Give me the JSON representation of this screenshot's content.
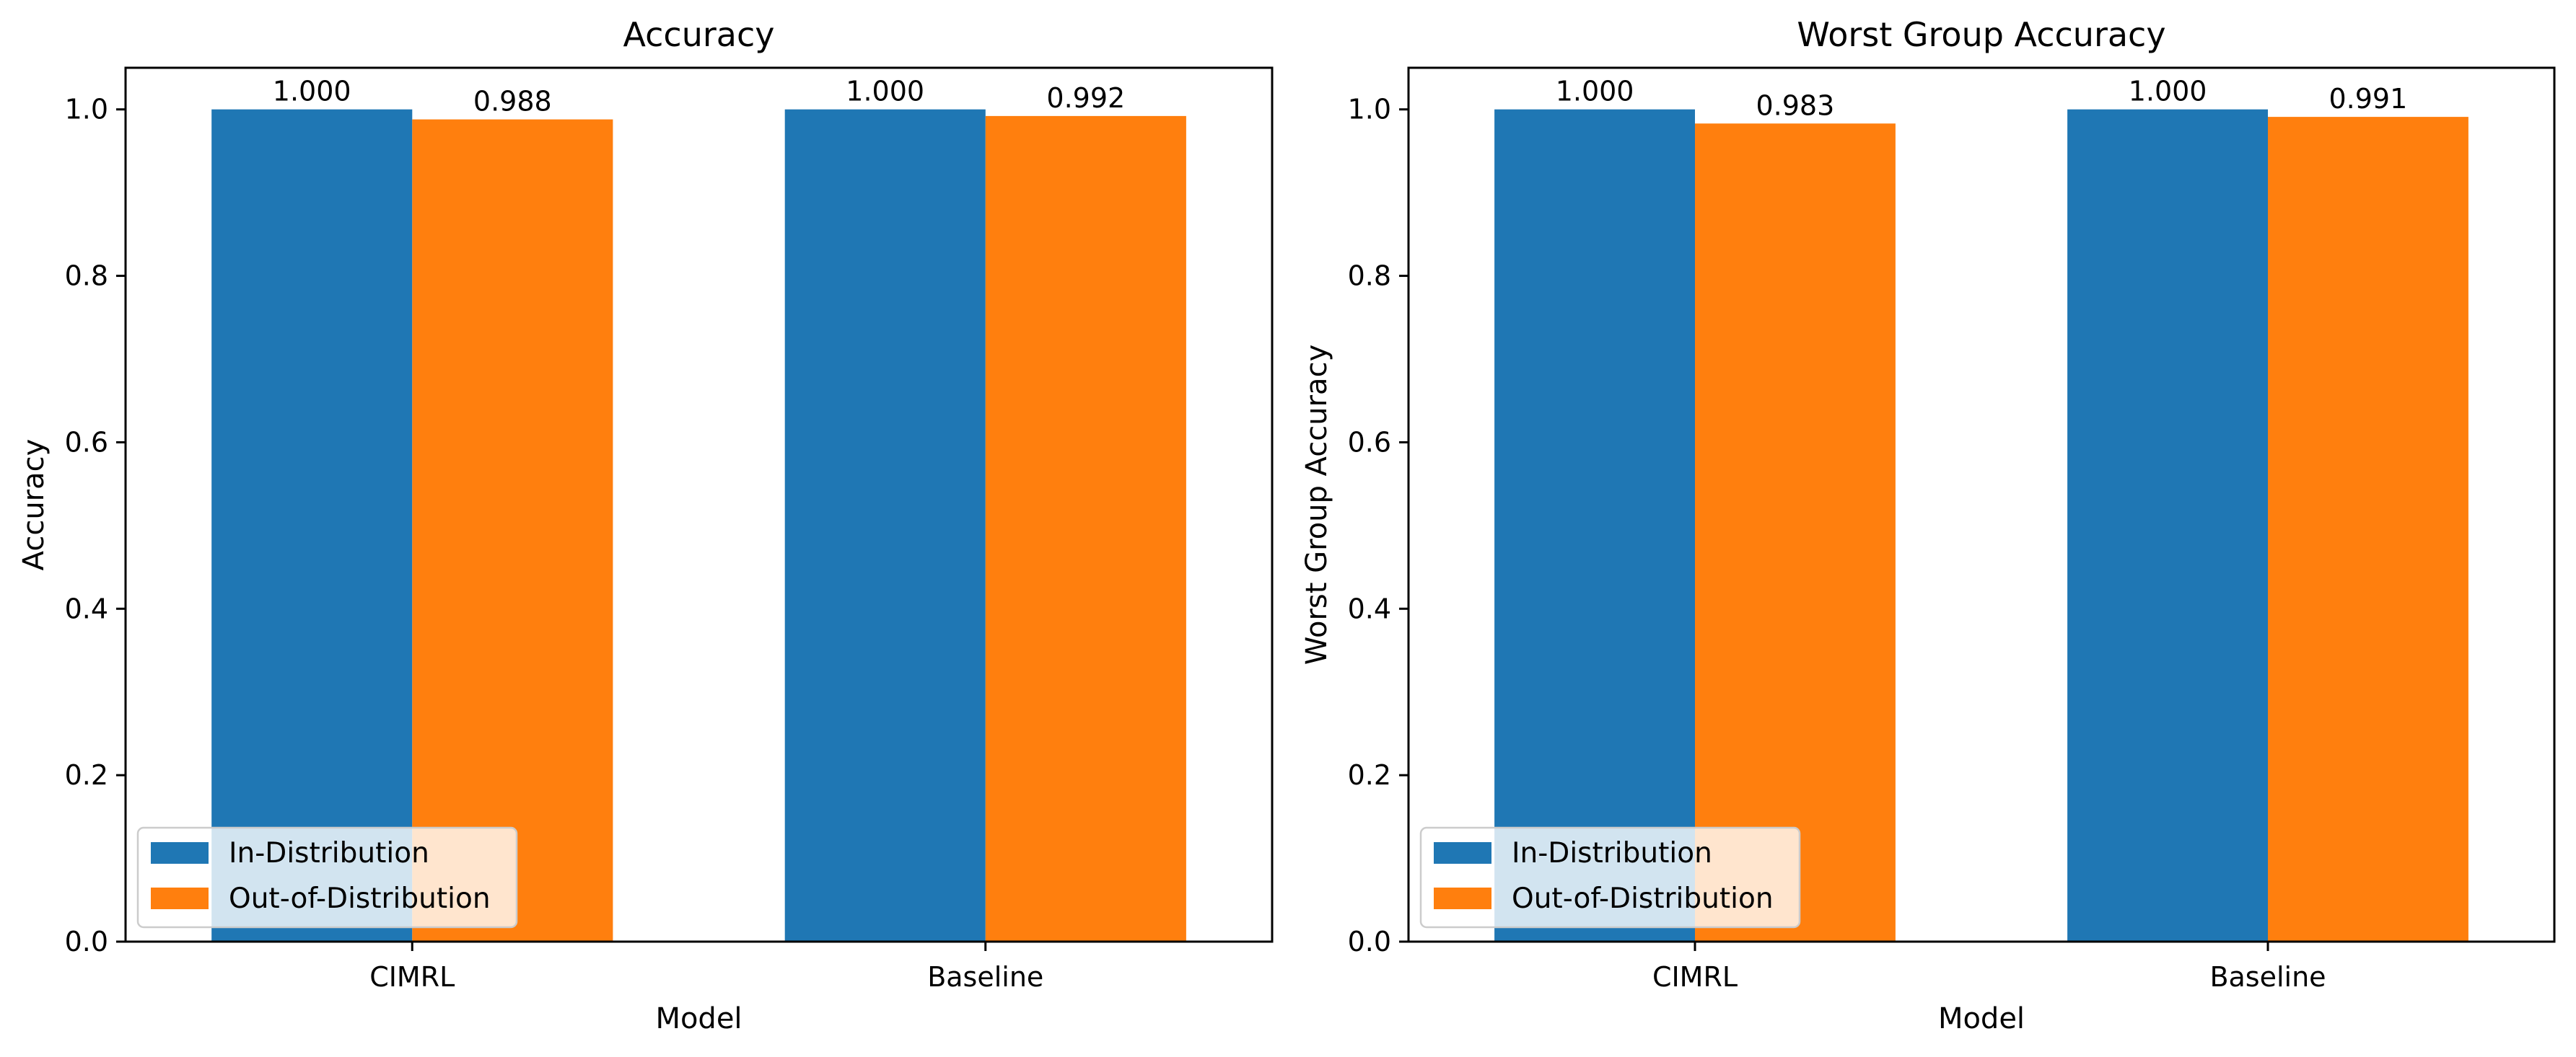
{
  "chart_data": [
    {
      "type": "bar",
      "title": "Accuracy",
      "xlabel": "Model",
      "ylabel": "Accuracy",
      "categories": [
        "CIMRL",
        "Baseline"
      ],
      "series": [
        {
          "name": "In-Distribution",
          "values": [
            1.0,
            1.0
          ],
          "labels": [
            "1.000",
            "1.000"
          ],
          "color": "#1f77b4"
        },
        {
          "name": "Out-of-Distribution",
          "values": [
            0.988,
            0.992
          ],
          "labels": [
            "0.988",
            "0.992"
          ],
          "color": "#ff7f0e"
        }
      ],
      "ylim": [
        0,
        1.05
      ],
      "yticks": [
        "0.0",
        "0.2",
        "0.4",
        "0.6",
        "0.8",
        "1.0"
      ],
      "ytick_values": [
        0,
        0.2,
        0.4,
        0.6,
        0.8,
        1.0
      ],
      "grid": false,
      "legend_position": "lower-left"
    },
    {
      "type": "bar",
      "title": "Worst Group Accuracy",
      "xlabel": "Model",
      "ylabel": "Worst Group Accuracy",
      "categories": [
        "CIMRL",
        "Baseline"
      ],
      "series": [
        {
          "name": "In-Distribution",
          "values": [
            1.0,
            1.0
          ],
          "labels": [
            "1.000",
            "1.000"
          ],
          "color": "#1f77b4"
        },
        {
          "name": "Out-of-Distribution",
          "values": [
            0.983,
            0.991
          ],
          "labels": [
            "0.983",
            "0.991"
          ],
          "color": "#ff7f0e"
        }
      ],
      "ylim": [
        0,
        1.05
      ],
      "yticks": [
        "0.0",
        "0.2",
        "0.4",
        "0.6",
        "0.8",
        "1.0"
      ],
      "ytick_values": [
        0,
        0.2,
        0.4,
        0.6,
        0.8,
        1.0
      ],
      "grid": false,
      "legend_position": "lower-left"
    }
  ]
}
